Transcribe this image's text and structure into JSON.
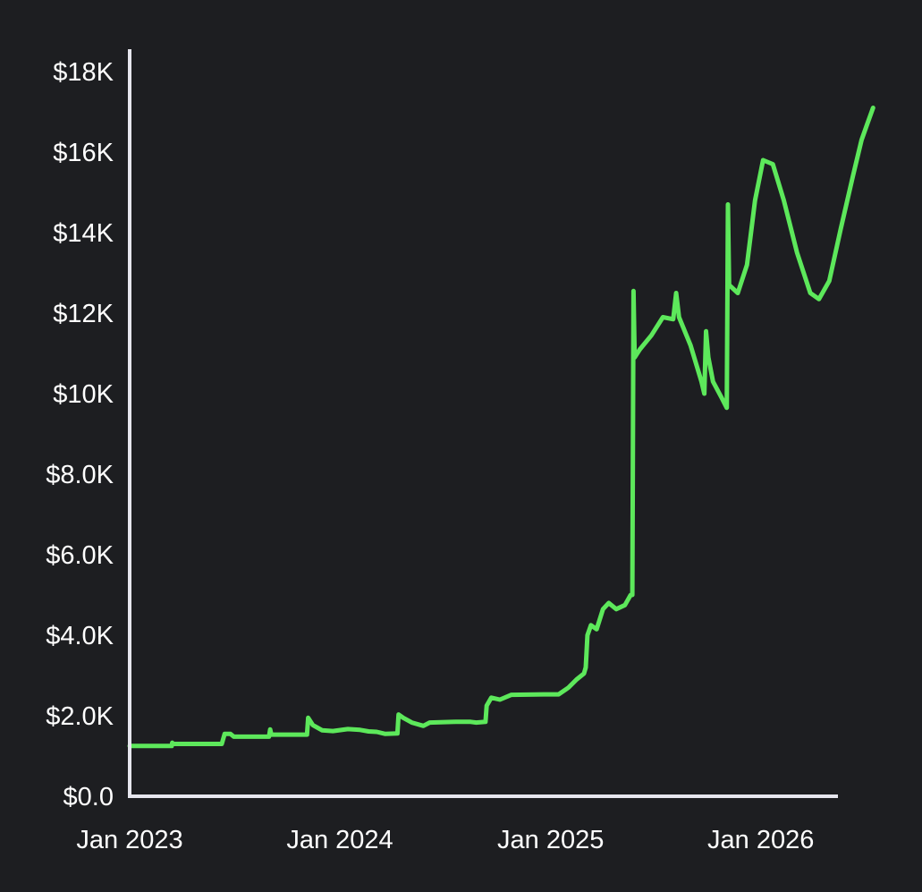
{
  "colors": {
    "background": "#1d1e21",
    "axis": "#e6e6ee",
    "text": "#ffffff",
    "line": "#5de85b"
  },
  "chart_data": {
    "type": "line",
    "title": "",
    "xlabel": "",
    "ylabel": "",
    "grid": false,
    "legend": "none",
    "xlim": [
      "2023-01-01",
      "2026-05-15"
    ],
    "ylim": [
      0,
      18000
    ],
    "x_ticks": [
      {
        "value": "2023-01-01",
        "label": "Jan 2023"
      },
      {
        "value": "2024-01-01",
        "label": "Jan 2024"
      },
      {
        "value": "2025-01-01",
        "label": "Jan 2025"
      },
      {
        "value": "2026-01-01",
        "label": "Jan 2026"
      }
    ],
    "y_ticks": [
      {
        "value": 0,
        "label": "$0.0"
      },
      {
        "value": 2000,
        "label": "$2.0K"
      },
      {
        "value": 4000,
        "label": "$4.0K"
      },
      {
        "value": 6000,
        "label": "$6.0K"
      },
      {
        "value": 8000,
        "label": "$8.0K"
      },
      {
        "value": 10000,
        "label": "$10K"
      },
      {
        "value": 12000,
        "label": "$12K"
      },
      {
        "value": 14000,
        "label": "$14K"
      },
      {
        "value": 16000,
        "label": "$16K"
      },
      {
        "value": 18000,
        "label": "$18K"
      }
    ],
    "series": [
      {
        "color": "#5de85b",
        "points": [
          [
            "2023-01-01",
            1250
          ],
          [
            "2023-03-15",
            1250
          ],
          [
            "2023-03-16",
            1330
          ],
          [
            "2023-03-17",
            1300
          ],
          [
            "2023-06-10",
            1300
          ],
          [
            "2023-06-15",
            1550
          ],
          [
            "2023-06-25",
            1550
          ],
          [
            "2023-07-01",
            1480
          ],
          [
            "2023-08-31",
            1480
          ],
          [
            "2023-09-02",
            1660
          ],
          [
            "2023-09-04",
            1530
          ],
          [
            "2023-11-05",
            1530
          ],
          [
            "2023-11-07",
            1950
          ],
          [
            "2023-11-15",
            1770
          ],
          [
            "2023-12-01",
            1640
          ],
          [
            "2023-12-20",
            1620
          ],
          [
            "2024-01-15",
            1670
          ],
          [
            "2024-02-05",
            1650
          ],
          [
            "2024-02-20",
            1610
          ],
          [
            "2024-03-05",
            1600
          ],
          [
            "2024-03-20",
            1550
          ],
          [
            "2024-04-10",
            1560
          ],
          [
            "2024-04-12",
            2030
          ],
          [
            "2024-04-20",
            1950
          ],
          [
            "2024-05-05",
            1830
          ],
          [
            "2024-05-25",
            1750
          ],
          [
            "2024-06-05",
            1830
          ],
          [
            "2024-07-20",
            1850
          ],
          [
            "2024-08-15",
            1850
          ],
          [
            "2024-08-25",
            1830
          ],
          [
            "2024-09-10",
            1850
          ],
          [
            "2024-09-12",
            2250
          ],
          [
            "2024-09-20",
            2450
          ],
          [
            "2024-10-05",
            2400
          ],
          [
            "2024-10-25",
            2520
          ],
          [
            "2024-12-20",
            2530
          ],
          [
            "2025-01-15",
            2530
          ],
          [
            "2025-02-01",
            2700
          ],
          [
            "2025-02-15",
            2900
          ],
          [
            "2025-02-28",
            3050
          ],
          [
            "2025-03-03",
            3200
          ],
          [
            "2025-03-06",
            4000
          ],
          [
            "2025-03-12",
            4250
          ],
          [
            "2025-03-22",
            4150
          ],
          [
            "2025-04-02",
            4650
          ],
          [
            "2025-04-12",
            4800
          ],
          [
            "2025-04-25",
            4650
          ],
          [
            "2025-05-10",
            4750
          ],
          [
            "2025-05-20",
            5000
          ],
          [
            "2025-05-23",
            5000
          ],
          [
            "2025-05-25",
            12550
          ],
          [
            "2025-05-27",
            10900
          ],
          [
            "2025-06-05",
            11100
          ],
          [
            "2025-06-25",
            11450
          ],
          [
            "2025-07-15",
            11900
          ],
          [
            "2025-08-02",
            11850
          ],
          [
            "2025-08-07",
            12500
          ],
          [
            "2025-08-12",
            11900
          ],
          [
            "2025-09-01",
            11200
          ],
          [
            "2025-09-20",
            10300
          ],
          [
            "2025-09-25",
            10000
          ],
          [
            "2025-09-28",
            11550
          ],
          [
            "2025-10-02",
            10900
          ],
          [
            "2025-10-10",
            10300
          ],
          [
            "2025-10-25",
            9900
          ],
          [
            "2025-11-03",
            9650
          ],
          [
            "2025-11-05",
            14700
          ],
          [
            "2025-11-07",
            12700
          ],
          [
            "2025-11-22",
            12500
          ],
          [
            "2025-12-08",
            13200
          ],
          [
            "2025-12-22",
            14800
          ],
          [
            "2026-01-05",
            15800
          ],
          [
            "2026-01-22",
            15700
          ],
          [
            "2026-02-10",
            14800
          ],
          [
            "2026-03-05",
            13500
          ],
          [
            "2026-03-28",
            12500
          ],
          [
            "2026-04-12",
            12350
          ],
          [
            "2026-04-30",
            12800
          ],
          [
            "2026-05-20",
            14100
          ],
          [
            "2026-06-10",
            15400
          ],
          [
            "2026-06-25",
            16300
          ],
          [
            "2026-07-05",
            16700
          ],
          [
            "2026-07-15",
            17100
          ]
        ]
      }
    ]
  }
}
